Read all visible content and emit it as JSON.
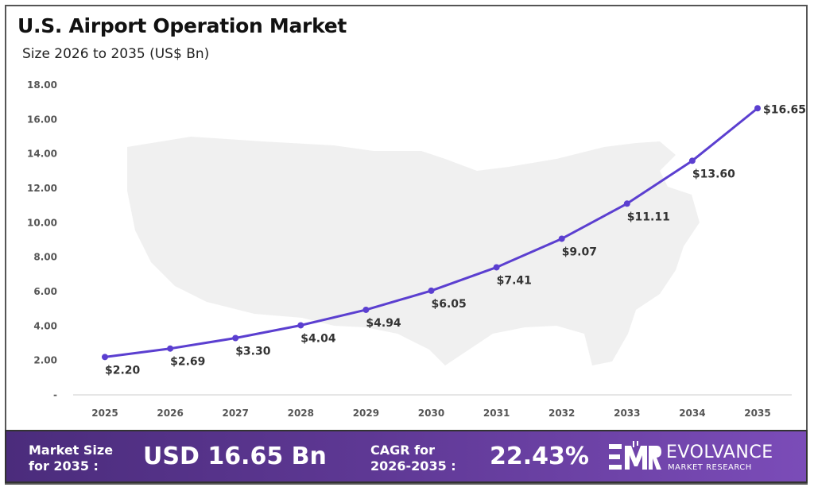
{
  "chart_data": {
    "type": "line",
    "title": "U.S. Airport Operation Market",
    "subtitle": "Size 2026 to 2035 (US$ Bn)",
    "categories": [
      "2025",
      "2026",
      "2027",
      "2028",
      "2029",
      "2030",
      "2031",
      "2032",
      "2033",
      "2034",
      "2035"
    ],
    "values": [
      2.2,
      2.69,
      3.3,
      4.04,
      4.94,
      6.05,
      7.41,
      9.07,
      11.11,
      13.6,
      16.65
    ],
    "data_labels": [
      "$2.20",
      "$2.69",
      "$3.30",
      "$4.04",
      "$4.94",
      "$6.05",
      "$7.41",
      "$9.07",
      "$11.11",
      "$13.60",
      "$16.65"
    ],
    "y_ticks": [
      "-",
      "2.00",
      "4.00",
      "6.00",
      "8.00",
      "10.00",
      "12.00",
      "14.00",
      "16.00",
      "18.00"
    ],
    "ylim": [
      0,
      18
    ],
    "grid": false,
    "line_color": "#5b3fd0",
    "background": "US map silhouette (light gray)"
  },
  "banner": {
    "market_size_label_1": "Market Size",
    "market_size_label_2": "for 2035 :",
    "market_size_value": "USD 16.65 Bn",
    "cagr_label_1": "CAGR for",
    "cagr_label_2": "2026-2035 :",
    "cagr_value": "22.43%",
    "logo_name": "EVOLVANCE",
    "logo_sub": "MARKET RESEARCH",
    "logo_mark": "EMR"
  }
}
